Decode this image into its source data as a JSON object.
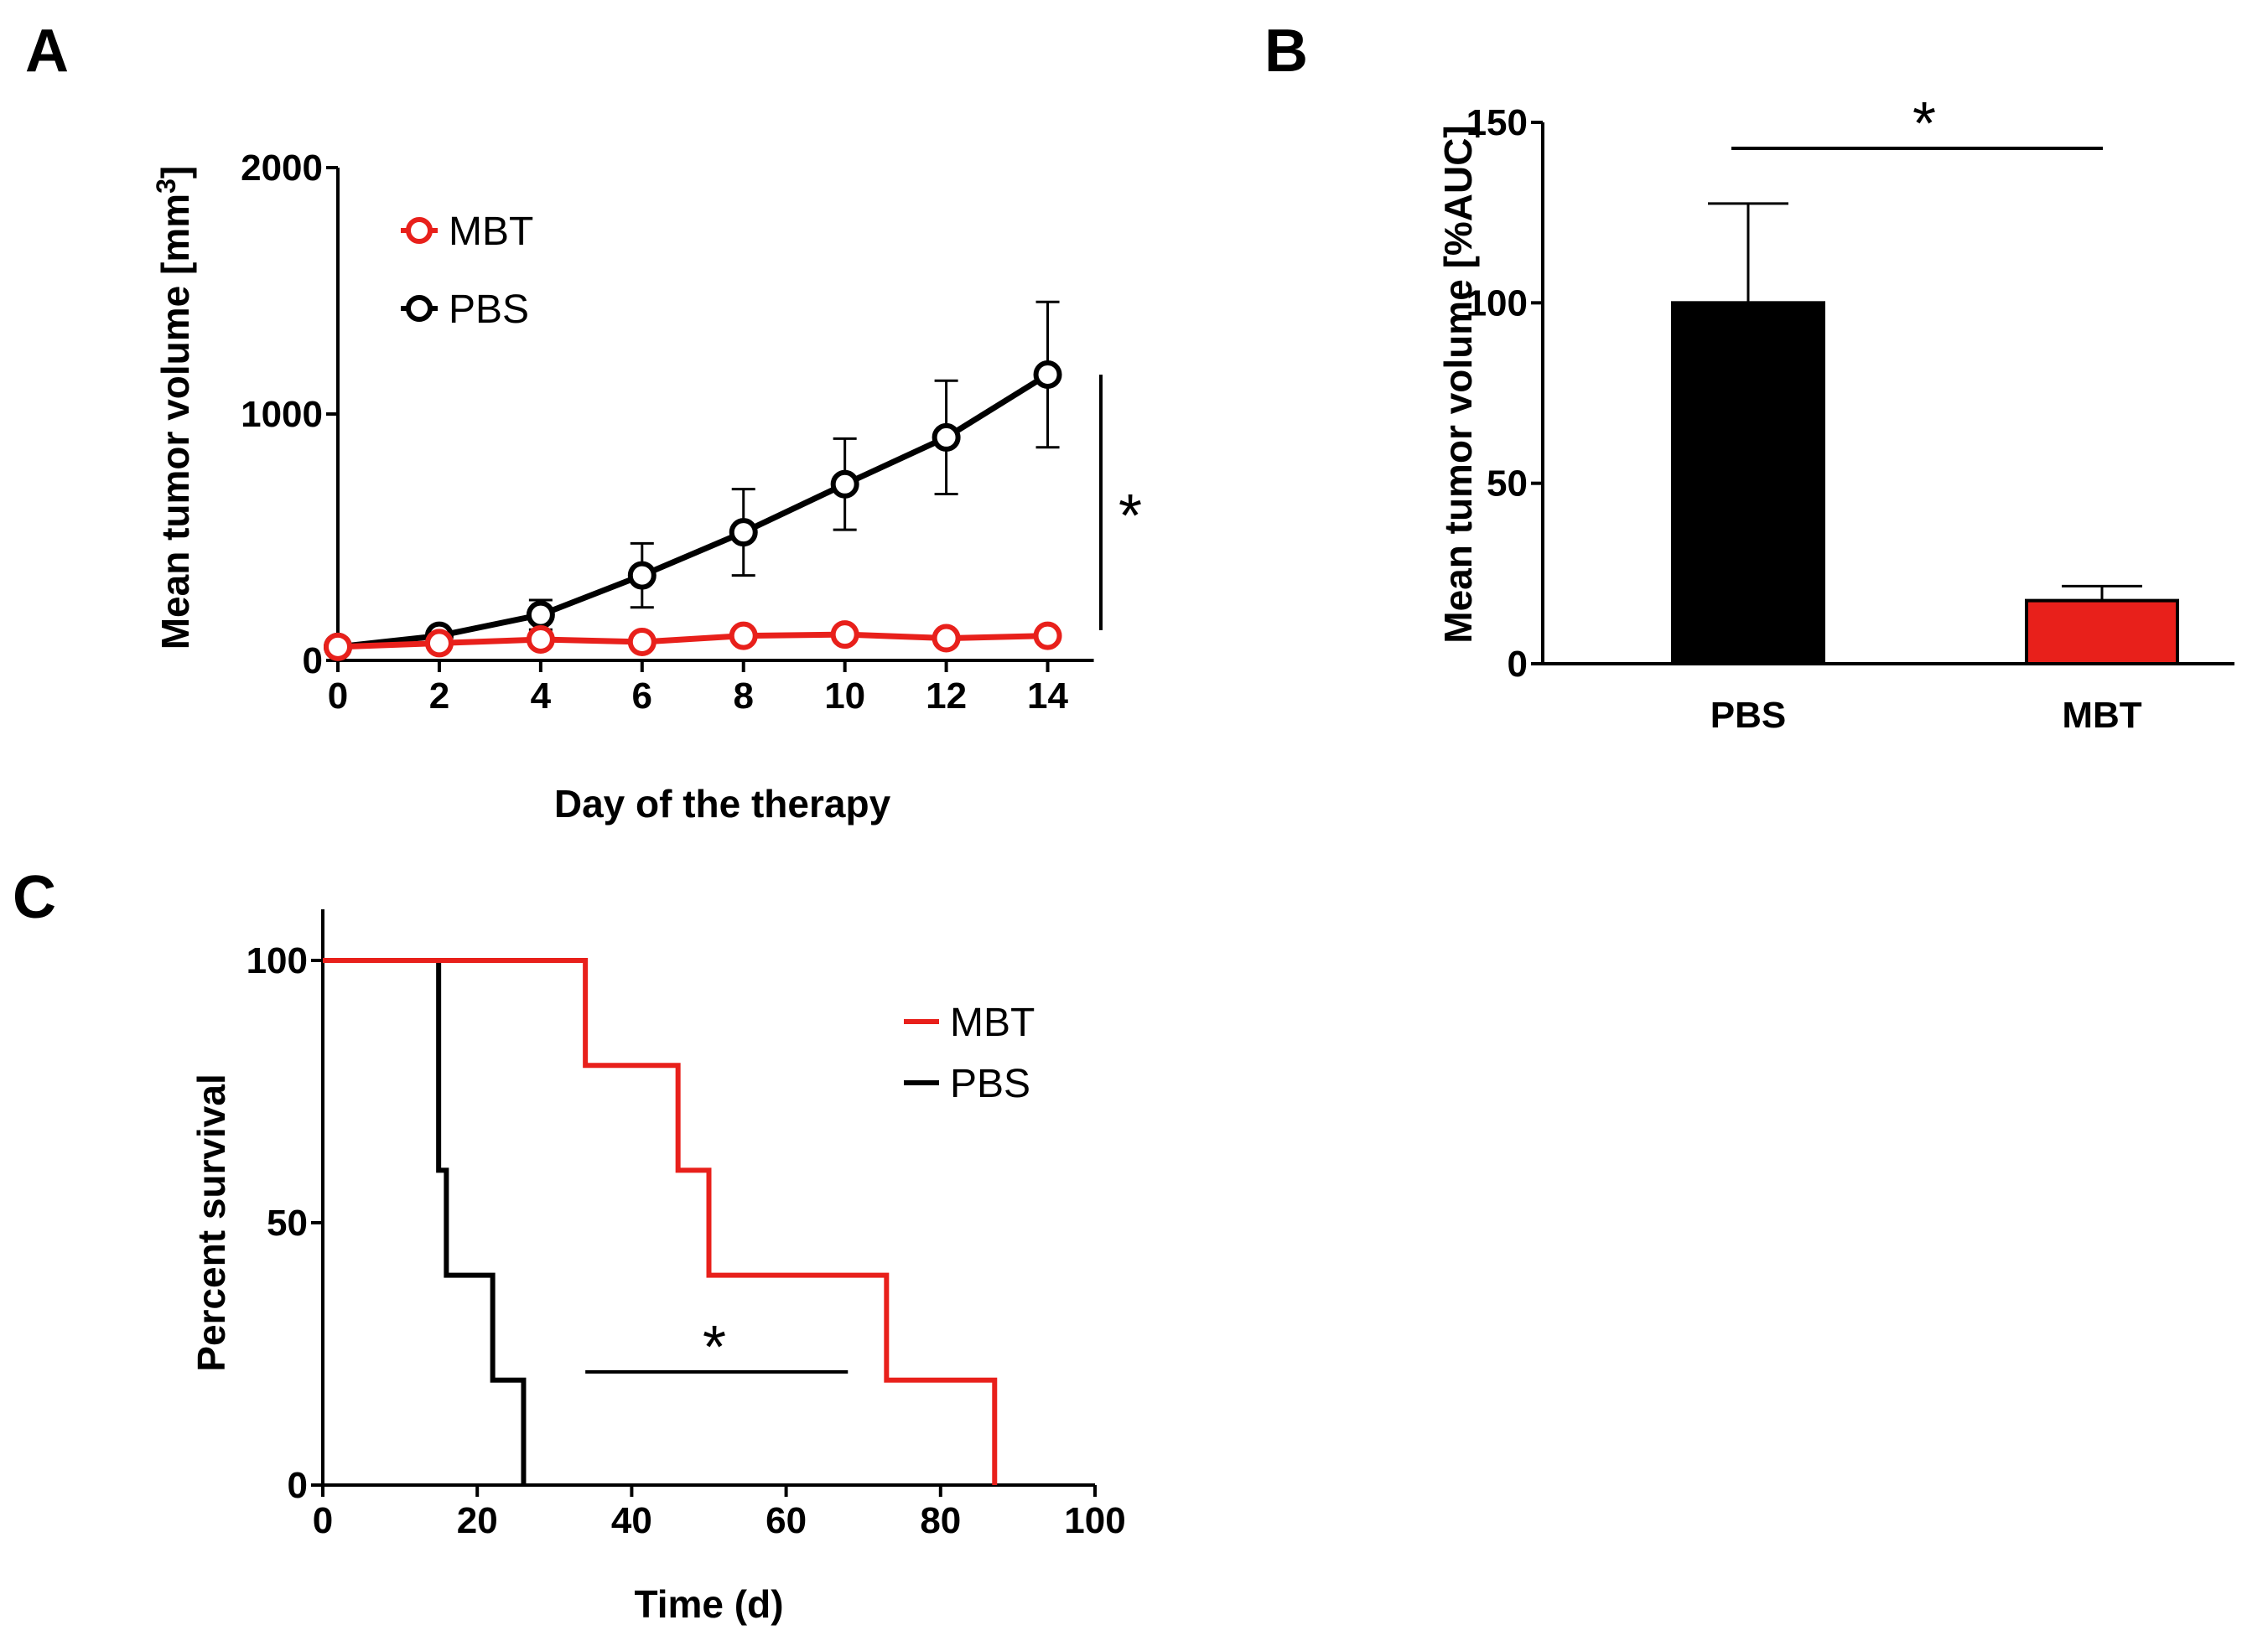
{
  "chart_data": [
    {
      "panel": "A",
      "type": "line",
      "title": "",
      "xlabel": "Day of the therapy",
      "ylabel": "Mean tumor volume [mm³]",
      "ylabel_main": "Mean tumor volume [mm",
      "ylabel_sup": "3",
      "ylabel_end": "]",
      "x": [
        0,
        2,
        4,
        6,
        8,
        10,
        12,
        14
      ],
      "xlim": [
        0,
        15
      ],
      "ylim": [
        0,
        2000
      ],
      "xticks": [
        "0",
        "2",
        "4",
        "6",
        "8",
        "10",
        "12",
        "14"
      ],
      "yticks": [
        "0",
        "1000",
        "2000"
      ],
      "series": [
        {
          "name": "MBT",
          "color": "#e8201b",
          "values": [
            55,
            70,
            85,
            75,
            100,
            105,
            90,
            100
          ],
          "errors": [
            0,
            0,
            0,
            0,
            0,
            0,
            0,
            0
          ]
        },
        {
          "name": "PBS",
          "color": "#000000",
          "values": [
            55,
            100,
            185,
            345,
            520,
            715,
            905,
            1160
          ],
          "errors": [
            0,
            10,
            60,
            130,
            175,
            185,
            230,
            295
          ]
        }
      ],
      "significance": "*"
    },
    {
      "panel": "B",
      "type": "bar",
      "title": "",
      "xlabel": "",
      "ylabel": "Mean tumor volume [%AUC]",
      "categories": [
        "PBS",
        "MBT"
      ],
      "values": [
        100,
        17.5
      ],
      "errors": [
        27.5,
        4
      ],
      "colors": [
        "#000000",
        "#e8201b"
      ],
      "ylim": [
        0,
        150
      ],
      "yticks": [
        "0",
        "50",
        "100",
        "150"
      ],
      "significance": "*"
    },
    {
      "panel": "C",
      "type": "line",
      "subtype": "kaplan-meier",
      "title": "",
      "xlabel": "Time (d)",
      "ylabel": "Percent survival",
      "xlim": [
        0,
        100
      ],
      "ylim": [
        0,
        100
      ],
      "xticks": [
        "0",
        "20",
        "40",
        "60",
        "80",
        "100"
      ],
      "yticks": [
        "0",
        "50",
        "100"
      ],
      "series": [
        {
          "name": "MBT",
          "color": "#e8201b",
          "steps": [
            [
              0,
              100
            ],
            [
              34,
              80
            ],
            [
              46,
              60
            ],
            [
              50,
              40
            ],
            [
              73,
              20
            ],
            [
              87,
              0
            ]
          ]
        },
        {
          "name": "PBS",
          "color": "#000000",
          "steps": [
            [
              0,
              100
            ],
            [
              15,
              60
            ],
            [
              16,
              40
            ],
            [
              22,
              20
            ],
            [
              26,
              0
            ]
          ]
        }
      ],
      "significance_range": [
        34,
        68
      ],
      "significance": "*"
    }
  ],
  "panels": {
    "a": "A",
    "b": "B",
    "c": "C"
  }
}
